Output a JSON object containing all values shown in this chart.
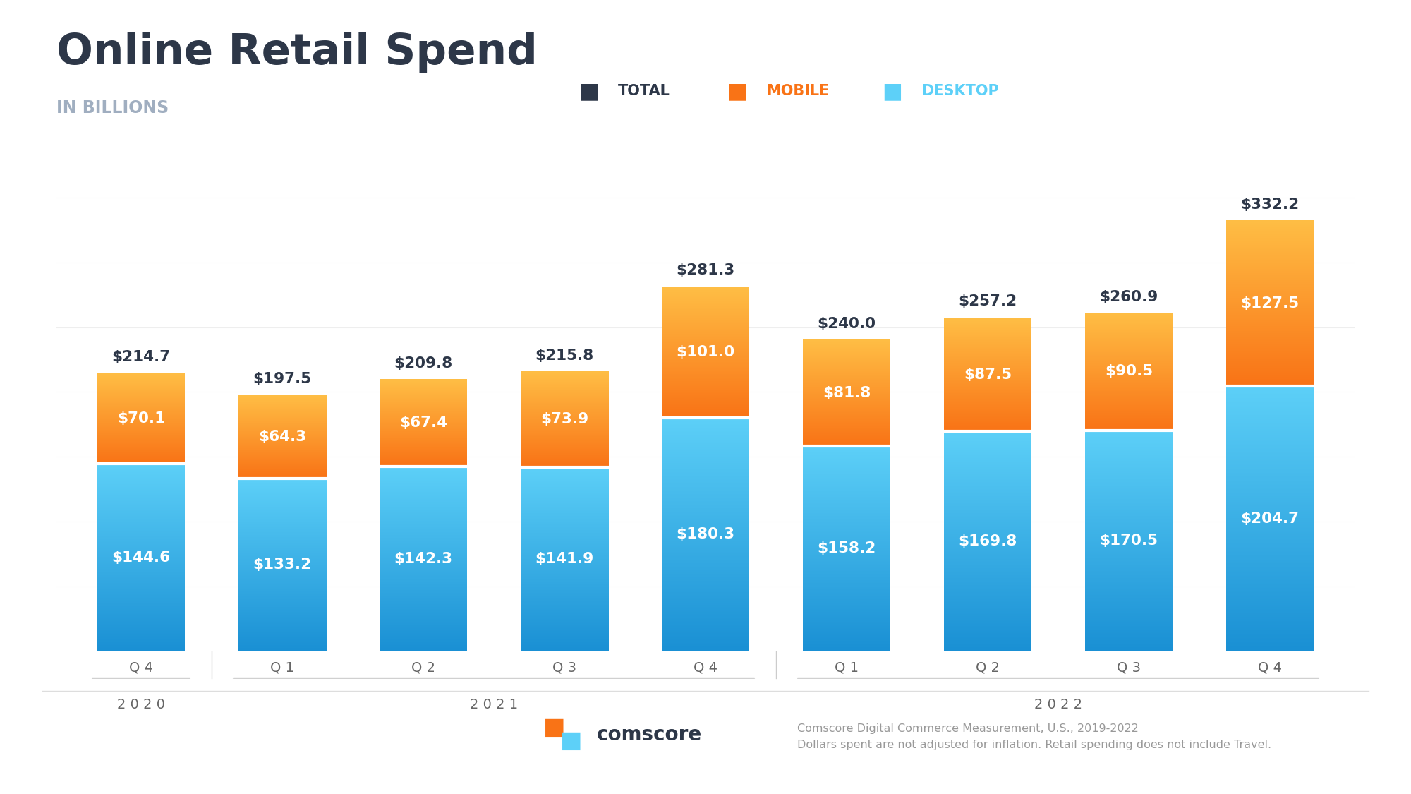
{
  "title": "Online Retail Spend",
  "subtitle": "IN BILLIONS",
  "title_color": "#2d3748",
  "subtitle_color": "#a0aec0",
  "background_color": "#ffffff",
  "categories": [
    "Q 4",
    "Q 1",
    "Q 2",
    "Q 3",
    "Q 4",
    "Q 1",
    "Q 2",
    "Q 3",
    "Q 4"
  ],
  "year_groups": [
    {
      "label": "2 0 2 0",
      "start": 0,
      "end": 0
    },
    {
      "label": "2 0 2 1",
      "start": 1,
      "end": 4
    },
    {
      "label": "2 0 2 2",
      "start": 5,
      "end": 8
    }
  ],
  "desktop_values": [
    144.6,
    133.2,
    142.3,
    141.9,
    180.3,
    158.2,
    169.8,
    170.5,
    204.7
  ],
  "mobile_values": [
    70.1,
    64.3,
    67.4,
    73.9,
    101.0,
    81.8,
    87.5,
    90.5,
    127.5
  ],
  "total_values": [
    214.7,
    197.5,
    209.8,
    215.8,
    281.3,
    240.0,
    257.2,
    260.9,
    332.2
  ],
  "desktop_color_top": "#5dd0f8",
  "desktop_color_bottom": "#1a90d4",
  "mobile_color_top": "#ffbe45",
  "mobile_color_bottom": "#f97316",
  "legend_total_color": "#2d3748",
  "legend_mobile_color": "#f97316",
  "legend_desktop_color": "#5dd0f8",
  "bar_width": 0.62,
  "ylim": [
    0,
    380
  ],
  "footnote1": "Comscore Digital Commerce Measurement, U.S., 2019-2022",
  "footnote2": "Dollars spent are not adjusted for inflation. Retail spending does not include Travel."
}
